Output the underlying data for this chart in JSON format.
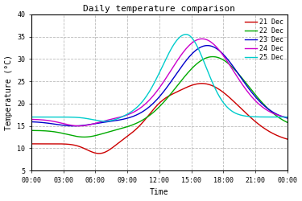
{
  "title": "Daily temperature comparison",
  "xlabel": "Time",
  "ylabel": "Temperature (°C)",
  "ylim": [
    5,
    40
  ],
  "yticks": [
    5,
    10,
    15,
    20,
    25,
    30,
    35,
    40
  ],
  "xtick_labels": [
    "00:00",
    "03:00",
    "06:00",
    "09:00",
    "12:00",
    "15:00",
    "18:00",
    "21:00",
    "00:00"
  ],
  "legend_labels": [
    "21 Dec",
    "22 Dec",
    "23 Dec",
    "24 Dec",
    "25 Dec"
  ],
  "colors": [
    "#cc0000",
    "#00aa00",
    "#0000cc",
    "#cc00cc",
    "#00cccc"
  ],
  "background_color": "#ffffff",
  "grid_color": "#bbbbbb",
  "figsize": [
    3.75,
    2.5
  ],
  "dpi": 100
}
